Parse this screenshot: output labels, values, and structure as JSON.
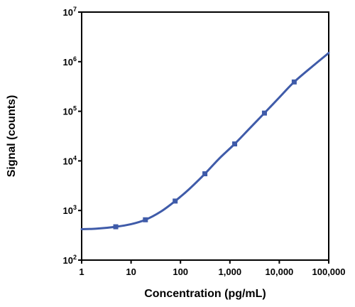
{
  "chart_data": {
    "type": "scatter",
    "xlabel": "Concentration (pg/mL)",
    "ylabel": "Signal (counts)",
    "x_scale": "log",
    "y_scale": "log",
    "xlim": [
      1,
      100000
    ],
    "ylim": [
      100,
      10000000
    ],
    "x_ticks": [
      1,
      10,
      100,
      1000,
      10000,
      100000
    ],
    "x_tick_labels": [
      "1",
      "10",
      "100",
      "1,000",
      "10,000",
      "100,000"
    ],
    "y_ticks": [
      100,
      1000,
      10000,
      100000,
      1000000,
      10000000
    ],
    "y_tick_labels": [
      {
        "base": "10",
        "exp": "2"
      },
      {
        "base": "10",
        "exp": "3"
      },
      {
        "base": "10",
        "exp": "4"
      },
      {
        "base": "10",
        "exp": "5"
      },
      {
        "base": "10",
        "exp": "6"
      },
      {
        "base": "10",
        "exp": "7"
      }
    ],
    "grid": false,
    "series_color": "#3f5ba9",
    "points": [
      {
        "x": 4.9,
        "y": 470
      },
      {
        "x": 19.5,
        "y": 650
      },
      {
        "x": 78,
        "y": 1550
      },
      {
        "x": 312,
        "y": 5500
      },
      {
        "x": 1250,
        "y": 22000
      },
      {
        "x": 5000,
        "y": 92000
      },
      {
        "x": 20000,
        "y": 390000
      }
    ],
    "fit_curve": [
      {
        "x": 1,
        "y": 420
      },
      {
        "x": 2,
        "y": 430
      },
      {
        "x": 4.9,
        "y": 470
      },
      {
        "x": 10,
        "y": 530
      },
      {
        "x": 19.5,
        "y": 650
      },
      {
        "x": 40,
        "y": 950
      },
      {
        "x": 78,
        "y": 1550
      },
      {
        "x": 150,
        "y": 2700
      },
      {
        "x": 312,
        "y": 5500
      },
      {
        "x": 600,
        "y": 11000
      },
      {
        "x": 1250,
        "y": 22000
      },
      {
        "x": 2500,
        "y": 45000
      },
      {
        "x": 5000,
        "y": 92000
      },
      {
        "x": 10000,
        "y": 190000
      },
      {
        "x": 20000,
        "y": 390000
      },
      {
        "x": 50000,
        "y": 850000
      },
      {
        "x": 100000,
        "y": 1500000
      }
    ]
  }
}
